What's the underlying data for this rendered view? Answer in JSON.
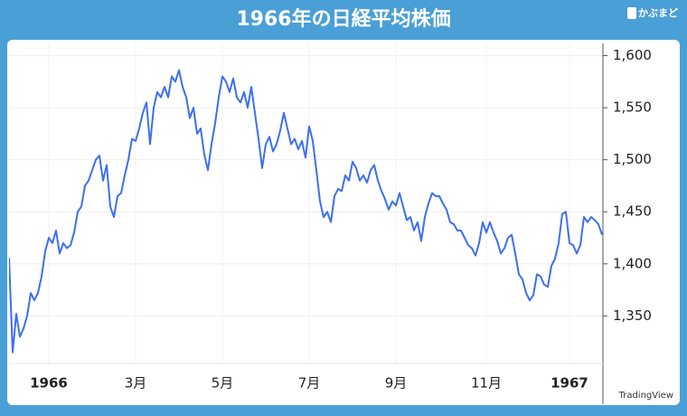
{
  "chart_data": {
    "type": "line",
    "title": "1966年の日経平均株価",
    "categories": [
      null,
      null,
      null,
      null,
      null,
      null,
      null,
      null,
      null,
      null,
      null,
      "1966",
      null,
      null,
      null,
      null,
      null,
      null,
      null,
      null,
      null,
      null,
      null,
      null,
      null,
      null,
      null,
      null,
      null,
      null,
      null,
      null,
      null,
      null,
      null,
      "3月",
      null,
      null,
      null,
      null,
      null,
      null,
      null,
      null,
      null,
      null,
      null,
      null,
      null,
      null,
      null,
      null,
      null,
      null,
      null,
      null,
      null,
      null,
      null,
      "5月",
      null,
      null,
      null,
      null,
      null,
      null,
      null,
      null,
      null,
      null,
      null,
      null,
      null,
      null,
      null,
      null,
      null,
      null,
      null,
      null,
      null,
      null,
      null,
      "7月",
      null,
      null,
      null,
      null,
      null,
      null,
      null,
      null,
      null,
      null,
      null,
      null,
      null,
      null,
      null,
      null,
      null,
      null,
      null,
      null,
      null,
      null,
      null,
      "9月",
      null,
      null,
      null,
      null,
      null,
      null,
      null,
      null,
      null,
      null,
      null,
      null,
      null,
      null,
      null,
      null,
      null,
      null,
      null,
      null,
      null,
      null,
      null,
      null,
      "11月",
      null,
      null,
      null,
      null,
      null,
      null,
      null,
      null,
      null,
      null,
      null,
      null,
      null,
      null,
      null,
      null,
      null,
      null,
      null,
      null,
      null,
      null,
      "1967",
      null,
      null,
      null,
      null,
      null,
      null,
      null,
      null,
      null
    ],
    "values": [
      1406,
      1315,
      1352,
      1330,
      1338,
      1350,
      1372,
      1365,
      1372,
      1388,
      1412,
      1425,
      1420,
      1432,
      1410,
      1420,
      1415,
      1418,
      1430,
      1450,
      1455,
      1475,
      1480,
      1490,
      1500,
      1504,
      1480,
      1495,
      1455,
      1445,
      1465,
      1468,
      1485,
      1500,
      1520,
      1518,
      1530,
      1545,
      1555,
      1515,
      1550,
      1565,
      1560,
      1570,
      1560,
      1580,
      1575,
      1586,
      1570,
      1560,
      1540,
      1550,
      1525,
      1530,
      1505,
      1490,
      1515,
      1535,
      1560,
      1580,
      1575,
      1565,
      1578,
      1560,
      1555,
      1565,
      1550,
      1570,
      1545,
      1520,
      1492,
      1515,
      1522,
      1508,
      1515,
      1528,
      1545,
      1530,
      1515,
      1520,
      1510,
      1518,
      1502,
      1532,
      1518,
      1490,
      1460,
      1445,
      1450,
      1440,
      1465,
      1472,
      1470,
      1485,
      1480,
      1498,
      1492,
      1480,
      1485,
      1478,
      1490,
      1495,
      1480,
      1470,
      1462,
      1452,
      1460,
      1456,
      1468,
      1455,
      1442,
      1445,
      1432,
      1440,
      1422,
      1445,
      1458,
      1468,
      1465,
      1465,
      1458,
      1452,
      1440,
      1438,
      1432,
      1432,
      1425,
      1418,
      1415,
      1408,
      1420,
      1440,
      1430,
      1440,
      1430,
      1422,
      1410,
      1415,
      1425,
      1428,
      1410,
      1390,
      1385,
      1372,
      1365,
      1370,
      1390,
      1388,
      1380,
      1378,
      1398,
      1405,
      1420,
      1448,
      1450,
      1420,
      1418,
      1410,
      1418,
      1445,
      1440,
      1445,
      1442,
      1438,
      1428
    ],
    "color": "#3d6ff0",
    "ylim": [
      1306,
      1610
    ],
    "yticks": [
      {
        "value": 1350,
        "label": "1,350"
      },
      {
        "value": 1400,
        "label": "1,400"
      },
      {
        "value": 1450,
        "label": "1,450"
      },
      {
        "value": 1500,
        "label": "1,500"
      },
      {
        "value": 1550,
        "label": "1,550"
      },
      {
        "value": 1600,
        "label": "1,600"
      }
    ],
    "grid": true
  },
  "watermarks": {
    "logo": "かぶまど",
    "source": "TradingView"
  }
}
